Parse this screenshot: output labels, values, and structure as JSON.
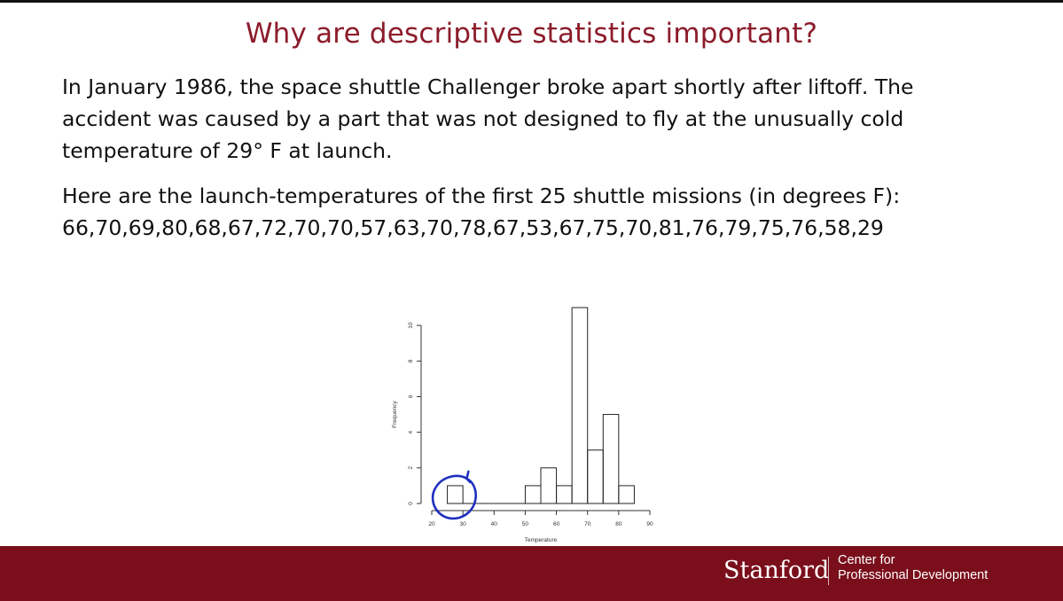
{
  "slide": {
    "title": "Why are descriptive statistics important?",
    "paragraph1_lines": [
      "In January 1986, the space shuttle Challenger broke apart shortly after liftoff.  The",
      "accident was caused by a part that was not designed to fly at the unusually cold",
      "temperature of 29° F at launch."
    ],
    "paragraph2_lines": [
      "Here are the launch-temperatures of the first 25 shuttle missions (in degrees F):",
      "66,70,69,80,68,67,72,70,70,57,63,70,78,67,53,67,75,70,81,76,79,75,76,58,29"
    ]
  },
  "chart_data": {
    "type": "bar",
    "histogram": true,
    "bin_width": 5,
    "bins": [
      {
        "start": 25,
        "end": 30,
        "count": 1
      },
      {
        "start": 30,
        "end": 35,
        "count": 0
      },
      {
        "start": 35,
        "end": 40,
        "count": 0
      },
      {
        "start": 40,
        "end": 45,
        "count": 0
      },
      {
        "start": 45,
        "end": 50,
        "count": 0
      },
      {
        "start": 50,
        "end": 55,
        "count": 1
      },
      {
        "start": 55,
        "end": 60,
        "count": 2
      },
      {
        "start": 60,
        "end": 65,
        "count": 1
      },
      {
        "start": 65,
        "end": 70,
        "count": 11
      },
      {
        "start": 70,
        "end": 75,
        "count": 3
      },
      {
        "start": 75,
        "end": 80,
        "count": 5
      },
      {
        "start": 80,
        "end": 85,
        "count": 1
      }
    ],
    "xlabel": "Temperature",
    "ylabel": "Frequency",
    "xlim": [
      20,
      90
    ],
    "ylim": [
      0,
      11
    ],
    "x_ticks": [
      20,
      30,
      40,
      50,
      60,
      70,
      80,
      90
    ],
    "y_ticks": [
      0,
      2,
      4,
      6,
      8,
      10
    ],
    "grid": false,
    "annotation": "hand-drawn blue circle around the bar at 25-30",
    "annotation_color": "#1f2fbf"
  },
  "footer": {
    "brand": "Stanford",
    "unit_line1": "Center for",
    "unit_line2": "Professional Development",
    "background_color": "#7a0f1b"
  }
}
